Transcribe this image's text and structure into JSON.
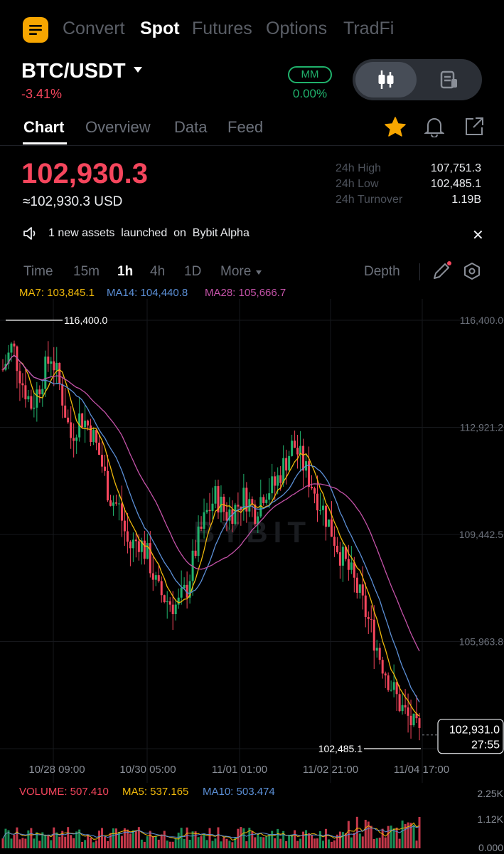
{
  "top_nav": {
    "items": [
      {
        "label": "Convert",
        "active": false
      },
      {
        "label": "Spot",
        "active": true
      },
      {
        "label": "Futures",
        "active": false
      },
      {
        "label": "Options",
        "active": false
      },
      {
        "label": "TradFi",
        "active": false
      }
    ]
  },
  "pair": {
    "symbol": "BTC/USDT",
    "change_pct": "-3.41%"
  },
  "mm": {
    "badge": "MM",
    "value": "0.00%"
  },
  "tabs": [
    {
      "label": "Chart",
      "active": true
    },
    {
      "label": "Overview",
      "active": false
    },
    {
      "label": "Data",
      "active": false
    },
    {
      "label": "Feed",
      "active": false
    }
  ],
  "price": {
    "last": "102,930.3",
    "usd": "≈102,930.3 USD"
  },
  "stats": {
    "high_label": "24h High",
    "high": "107,751.3",
    "low_label": "24h Low",
    "low": "102,485.1",
    "turnover_label": "24h Turnover",
    "turnover": "1.19B"
  },
  "announcement": {
    "text": "1 new assets  launched  on  Bybit Alpha"
  },
  "intervals": [
    {
      "label": "Time",
      "active": false
    },
    {
      "label": "15m",
      "active": false
    },
    {
      "label": "1h",
      "active": true
    },
    {
      "label": "4h",
      "active": false
    },
    {
      "label": "1D",
      "active": false
    },
    {
      "label": "More",
      "active": false
    }
  ],
  "depth_label": "Depth",
  "ma_legend": {
    "ma7": "MA7: 103,845.1",
    "ma14": "MA14: 104,440.8",
    "ma28": "MA28: 105,666.7"
  },
  "volume_legend": {
    "volume": "VOLUME: 507.410",
    "ma5": "MA5: 537.165",
    "ma10": "MA10: 503.474"
  },
  "colors": {
    "up": "#20b26c",
    "down": "#f6465d",
    "ma7": "#f0b90b",
    "ma14": "#5b8fd6",
    "ma28": "#c452a8",
    "accent": "#f7a600"
  },
  "icons": [
    "menu-icon",
    "caret-down-icon",
    "candlestick-icon",
    "orderbook-icon",
    "star-icon",
    "bell-icon",
    "share-icon",
    "speaker-icon",
    "close-icon",
    "pencil-icon",
    "settings-hex-icon"
  ],
  "chart_data": {
    "type": "candlestick",
    "watermark": "BYBIT",
    "price_axis_labels": [
      "116,400.0",
      "112,921.2",
      "109,442.5",
      "105,963.8"
    ],
    "price_axis_values": [
      116400.0,
      112921.2,
      109442.5,
      105963.8
    ],
    "x_labels": [
      "10/28 09:00",
      "10/30 05:00",
      "11/01 01:00",
      "11/02 21:00",
      "11/04 17:00"
    ],
    "high_marker": "116,400.0",
    "low_marker": "102,485.1",
    "current_price": "102,931.0",
    "countdown": "27:55",
    "volume_axis_labels": [
      "2.25K",
      "1.12K",
      "0.000"
    ],
    "close_path": [
      114800,
      115600,
      114400,
      113600,
      114500,
      115300,
      114100,
      112600,
      113300,
      112900,
      112000,
      110700,
      110300,
      109000,
      109300,
      108700,
      107600,
      107300,
      107100,
      107700,
      109100,
      110100,
      110700,
      110100,
      110300,
      110700,
      110200,
      110900,
      111000,
      111700,
      112400,
      111700,
      111000,
      110300,
      109500,
      108700,
      108100,
      107300,
      106400,
      105400,
      104600,
      103900,
      103400,
      102900
    ]
  }
}
